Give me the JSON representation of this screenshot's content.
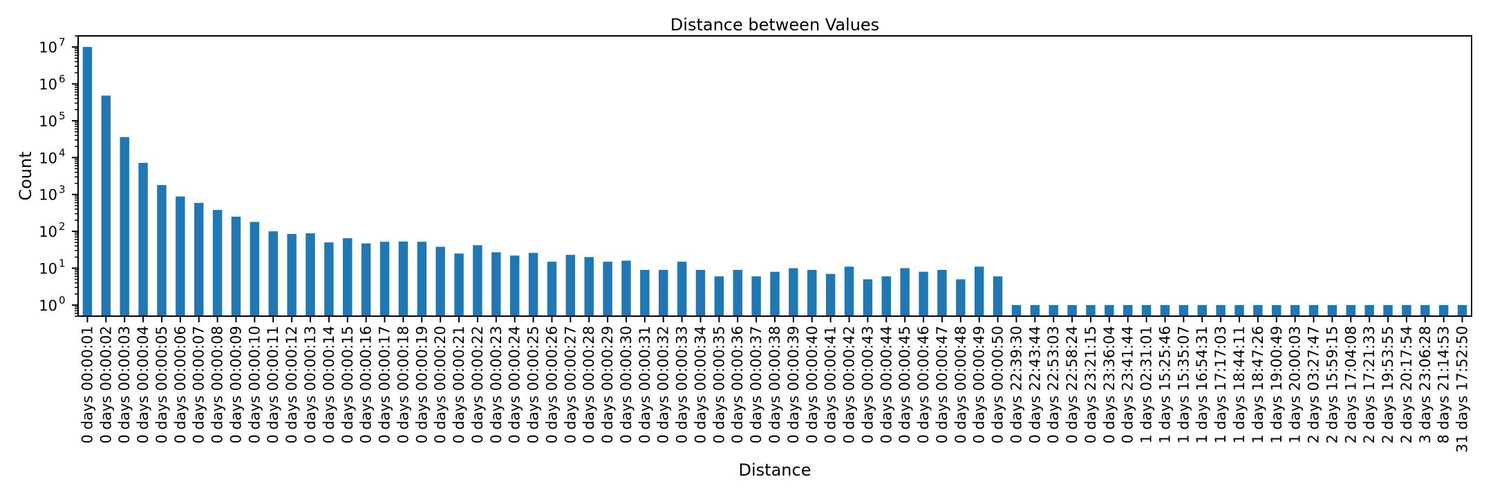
{
  "chart_data": {
    "type": "bar",
    "title": "Distance between Values",
    "xlabel": "Distance",
    "ylabel": "Count",
    "yscale": "log",
    "ylim": [
      0.5,
      20000000
    ],
    "yticks": [
      1,
      10,
      100,
      1000,
      10000,
      100000,
      1000000,
      10000000
    ],
    "ytick_labels": [
      {
        "base": "10",
        "exp": "0"
      },
      {
        "base": "10",
        "exp": "1"
      },
      {
        "base": "10",
        "exp": "2"
      },
      {
        "base": "10",
        "exp": "3"
      },
      {
        "base": "10",
        "exp": "4"
      },
      {
        "base": "10",
        "exp": "5"
      },
      {
        "base": "10",
        "exp": "6"
      },
      {
        "base": "10",
        "exp": "7"
      }
    ],
    "grid": false,
    "bar_color": "#1f77b4",
    "categories": [
      "0 days 00:00:01",
      "0 days 00:00:02",
      "0 days 00:00:03",
      "0 days 00:00:04",
      "0 days 00:00:05",
      "0 days 00:00:06",
      "0 days 00:00:07",
      "0 days 00:00:08",
      "0 days 00:00:09",
      "0 days 00:00:10",
      "0 days 00:00:11",
      "0 days 00:00:12",
      "0 days 00:00:13",
      "0 days 00:00:14",
      "0 days 00:00:15",
      "0 days 00:00:16",
      "0 days 00:00:17",
      "0 days 00:00:18",
      "0 days 00:00:19",
      "0 days 00:00:20",
      "0 days 00:00:21",
      "0 days 00:00:22",
      "0 days 00:00:23",
      "0 days 00:00:24",
      "0 days 00:00:25",
      "0 days 00:00:26",
      "0 days 00:00:27",
      "0 days 00:00:28",
      "0 days 00:00:29",
      "0 days 00:00:30",
      "0 days 00:00:31",
      "0 days 00:00:32",
      "0 days 00:00:33",
      "0 days 00:00:34",
      "0 days 00:00:35",
      "0 days 00:00:36",
      "0 days 00:00:37",
      "0 days 00:00:38",
      "0 days 00:00:39",
      "0 days 00:00:40",
      "0 days 00:00:41",
      "0 days 00:00:42",
      "0 days 00:00:43",
      "0 days 00:00:44",
      "0 days 00:00:45",
      "0 days 00:00:46",
      "0 days 00:00:47",
      "0 days 00:00:48",
      "0 days 00:00:49",
      "0 days 00:00:50",
      "0 days 22:39:30",
      "0 days 22:43:44",
      "0 days 22:53:03",
      "0 days 22:58:24",
      "0 days 23:21:15",
      "0 days 23:36:04",
      "0 days 23:41:44",
      "1 days 02:31:01",
      "1 days 15:25:46",
      "1 days 15:35:07",
      "1 days 16:54:31",
      "1 days 17:17:03",
      "1 days 18:44:11",
      "1 days 18:47:26",
      "1 days 19:00:49",
      "1 days 20:00:03",
      "2 days 03:27:47",
      "2 days 15:59:15",
      "2 days 17:04:08",
      "2 days 17:21:33",
      "2 days 19:53:55",
      "2 days 20:17:54",
      "3 days 23:06:28",
      "8 days 21:14:53",
      "31 days 17:52:50"
    ],
    "values": [
      10000000,
      480000,
      36000,
      7200,
      1800,
      880,
      590,
      380,
      250,
      180,
      100,
      85,
      88,
      50,
      65,
      47,
      52,
      53,
      52,
      38,
      25,
      42,
      27,
      22,
      26,
      15,
      23,
      20,
      15,
      16,
      9,
      9,
      15,
      9,
      6,
      9,
      6,
      8,
      10,
      9,
      7,
      11,
      5,
      6,
      10,
      8,
      9,
      5,
      11,
      6,
      1,
      1,
      1,
      1,
      1,
      1,
      1,
      1,
      1,
      1,
      1,
      1,
      1,
      1,
      1,
      1,
      1,
      1,
      1,
      1,
      1,
      1,
      1,
      1,
      1
    ]
  }
}
